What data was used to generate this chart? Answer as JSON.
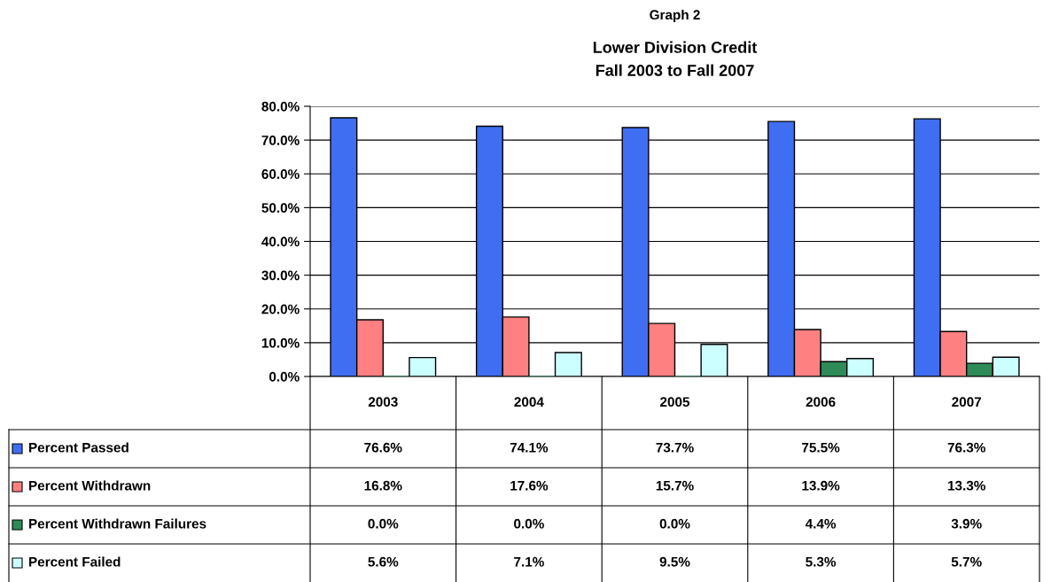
{
  "chart_data": {
    "type": "bar",
    "title": "Graph 2",
    "subtitle": "Lower Division Credit\nFall 2003 to Fall 2007",
    "categories": [
      "2003",
      "2004",
      "2005",
      "2006",
      "2007"
    ],
    "series": [
      {
        "name": "Percent Passed",
        "color": "#3f6ef2",
        "values": [
          76.6,
          74.1,
          73.7,
          75.5,
          76.3
        ],
        "value_labels": [
          "76.6%",
          "74.1%",
          "73.7%",
          "75.5%",
          "76.3%"
        ]
      },
      {
        "name": "Percent Withdrawn",
        "color": "#ff8080",
        "values": [
          16.8,
          17.6,
          15.7,
          13.9,
          13.3
        ],
        "value_labels": [
          "16.8%",
          "17.6%",
          "15.7%",
          "13.9%",
          "13.3%"
        ]
      },
      {
        "name": "Percent Withdrawn Failures",
        "color": "#2e8b57",
        "values": [
          0.0,
          0.0,
          0.0,
          4.4,
          3.9
        ],
        "value_labels": [
          "0.0%",
          "0.0%",
          "0.0%",
          "4.4%",
          "3.9%"
        ]
      },
      {
        "name": "Percent Failed",
        "color": "#ccffff",
        "values": [
          5.6,
          7.1,
          9.5,
          5.3,
          5.7
        ],
        "value_labels": [
          "5.6%",
          "7.1%",
          "9.5%",
          "5.3%",
          "5.7%"
        ]
      }
    ],
    "ylim": [
      0,
      80
    ],
    "yticks": [
      {
        "value": 0,
        "label": "0.0%"
      },
      {
        "value": 10,
        "label": "10.0%"
      },
      {
        "value": 20,
        "label": "20.0%"
      },
      {
        "value": 30,
        "label": "30.0%"
      },
      {
        "value": 40,
        "label": "40.0%"
      },
      {
        "value": 50,
        "label": "50.0%"
      },
      {
        "value": 60,
        "label": "60.0%"
      },
      {
        "value": 70,
        "label": "70.0%"
      },
      {
        "value": 80,
        "label": "80.0%"
      }
    ],
    "grid": "y",
    "legend": "bottom"
  }
}
